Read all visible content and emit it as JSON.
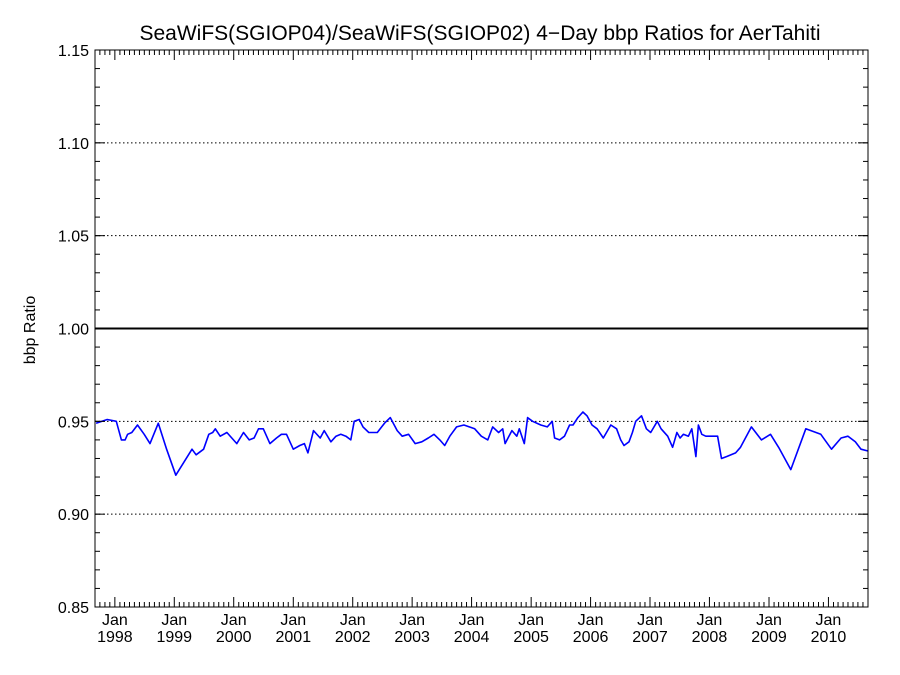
{
  "chart_data": {
    "type": "line",
    "title": "SeaWiFS(SGIOP04)/SeaWiFS(SGIOP02) 4−Day bbp Ratios for AerTahiti",
    "xlabel": "",
    "ylabel": "bbp Ratio",
    "ylim": [
      0.85,
      1.15
    ],
    "xlim": [
      "1997-09-01",
      "2010-09-01"
    ],
    "y_ticks": [
      "0.85",
      "0.90",
      "0.95",
      "1.00",
      "1.05",
      "1.10",
      "1.15"
    ],
    "x_ticks": [
      {
        "month": "Jan",
        "year": "1998",
        "date": "1998-01-01"
      },
      {
        "month": "Jan",
        "year": "1999",
        "date": "1999-01-01"
      },
      {
        "month": "Jan",
        "year": "2000",
        "date": "2000-01-01"
      },
      {
        "month": "Jan",
        "year": "2001",
        "date": "2001-01-01"
      },
      {
        "month": "Jan",
        "year": "2002",
        "date": "2002-01-01"
      },
      {
        "month": "Jan",
        "year": "2003",
        "date": "2003-01-01"
      },
      {
        "month": "Jan",
        "year": "2004",
        "date": "2004-01-01"
      },
      {
        "month": "Jan",
        "year": "2005",
        "date": "2005-01-01"
      },
      {
        "month": "Jan",
        "year": "2006",
        "date": "2006-01-01"
      },
      {
        "month": "Jan",
        "year": "2007",
        "date": "2007-01-01"
      },
      {
        "month": "Jan",
        "year": "2008",
        "date": "2008-01-01"
      },
      {
        "month": "Jan",
        "year": "2009",
        "date": "2009-01-01"
      },
      {
        "month": "Jan",
        "year": "2010",
        "date": "2010-01-01"
      }
    ],
    "grid": "horizontal dotted",
    "reference_line": 1.0,
    "colors": {
      "series": "#0000ff",
      "axis": "#000000",
      "reference": "#000000"
    },
    "series": [
      {
        "x": [
          "1997-09-08",
          "1997-11-15",
          "1998-01-10",
          "1998-02-10",
          "1998-03-05",
          "1998-03-20",
          "1998-04-15",
          "1998-05-20",
          "1998-06-30",
          "1998-08-05",
          "1998-09-25",
          "1998-11-15",
          "1999-01-10",
          "1999-04-20",
          "1999-05-15",
          "1999-06-30",
          "1999-08-01",
          "1999-08-25",
          "1999-09-10",
          "1999-10-10",
          "1999-11-20",
          "1999-12-20",
          "2000-01-20",
          "2000-03-01",
          "2000-04-05",
          "2000-05-05",
          "2000-06-01",
          "2000-07-01",
          "2000-08-10",
          "2000-09-20",
          "2000-10-20",
          "2000-11-20",
          "2001-01-01",
          "2001-02-10",
          "2001-03-10",
          "2001-04-01",
          "2001-05-05",
          "2001-06-15",
          "2001-07-10",
          "2001-08-20",
          "2001-09-20",
          "2001-10-20",
          "2001-11-20",
          "2001-12-20",
          "2002-01-10",
          "2002-02-10",
          "2002-03-05",
          "2002-04-10",
          "2002-06-01",
          "2002-07-15",
          "2002-08-20",
          "2002-10-01",
          "2002-11-01",
          "2002-12-10",
          "2003-01-20",
          "2003-03-01",
          "2003-04-10",
          "2003-05-15",
          "2003-06-20",
          "2003-07-20",
          "2003-08-20",
          "2003-10-01",
          "2003-11-15",
          "2004-01-20",
          "2004-03-01",
          "2004-04-10",
          "2004-05-10",
          "2004-06-15",
          "2004-07-10",
          "2004-07-25",
          "2004-09-05",
          "2004-10-05",
          "2004-10-20",
          "2004-11-20",
          "2004-12-10",
          "2005-01-10",
          "2005-03-01",
          "2005-04-10",
          "2005-05-10",
          "2005-05-25",
          "2005-06-25",
          "2005-07-25",
          "2005-08-25",
          "2005-09-15",
          "2005-10-15",
          "2005-11-15",
          "2005-12-10",
          "2006-01-10",
          "2006-02-10",
          "2006-03-20",
          "2006-05-05",
          "2006-06-10",
          "2006-07-05",
          "2006-07-25",
          "2006-08-25",
          "2006-09-15",
          "2006-10-05",
          "2006-11-10",
          "2006-12-10",
          "2007-01-05",
          "2007-02-15",
          "2007-03-10",
          "2007-04-20",
          "2007-05-20",
          "2007-06-15",
          "2007-07-05",
          "2007-07-25",
          "2007-08-25",
          "2007-09-15",
          "2007-10-10",
          "2007-10-25",
          "2007-11-15",
          "2007-12-10",
          "2008-01-15",
          "2008-02-20",
          "2008-03-15",
          "2008-04-15",
          "2008-06-10",
          "2008-07-10",
          "2008-09-15",
          "2008-11-15",
          "2009-01-10",
          "2009-03-01",
          "2009-05-15",
          "2009-08-15",
          "2009-11-15",
          "2010-01-20",
          "2010-03-20",
          "2010-05-01",
          "2010-06-15",
          "2010-07-20",
          "2010-09-01"
        ],
        "y": [
          0.949,
          0.951,
          0.95,
          0.94,
          0.94,
          0.943,
          0.944,
          0.948,
          0.943,
          0.938,
          0.949,
          0.935,
          0.921,
          0.935,
          0.932,
          0.935,
          0.943,
          0.944,
          0.946,
          0.942,
          0.944,
          0.941,
          0.938,
          0.944,
          0.94,
          0.941,
          0.946,
          0.946,
          0.938,
          0.941,
          0.943,
          0.943,
          0.935,
          0.937,
          0.938,
          0.933,
          0.945,
          0.941,
          0.945,
          0.939,
          0.942,
          0.943,
          0.942,
          0.94,
          0.95,
          0.951,
          0.947,
          0.944,
          0.944,
          0.949,
          0.952,
          0.945,
          0.942,
          0.943,
          0.938,
          0.939,
          0.941,
          0.943,
          0.94,
          0.937,
          0.942,
          0.947,
          0.948,
          0.946,
          0.942,
          0.94,
          0.947,
          0.944,
          0.946,
          0.938,
          0.945,
          0.942,
          0.946,
          0.938,
          0.952,
          0.95,
          0.948,
          0.947,
          0.95,
          0.941,
          0.94,
          0.942,
          0.948,
          0.948,
          0.952,
          0.955,
          0.953,
          0.948,
          0.946,
          0.941,
          0.948,
          0.946,
          0.94,
          0.937,
          0.939,
          0.944,
          0.95,
          0.953,
          0.946,
          0.944,
          0.95,
          0.946,
          0.942,
          0.936,
          0.944,
          0.941,
          0.943,
          0.942,
          0.946,
          0.931,
          0.948,
          0.943,
          0.942,
          0.942,
          0.942,
          0.93,
          0.931,
          0.933,
          0.936,
          0.947,
          0.94,
          0.943,
          0.936,
          0.924,
          0.946,
          0.943,
          0.935,
          0.941,
          0.942,
          0.939,
          0.935,
          0.934
        ]
      }
    ]
  }
}
